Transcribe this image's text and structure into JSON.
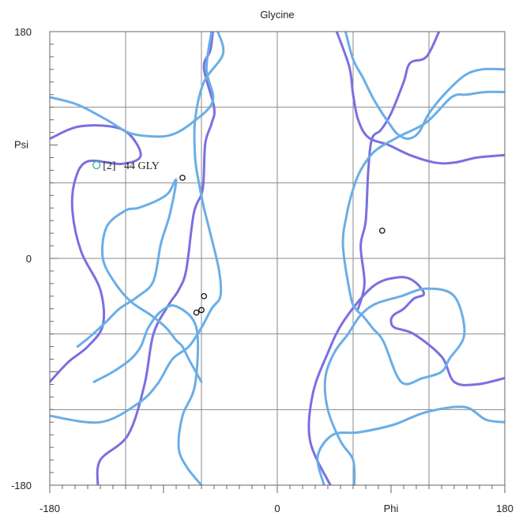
{
  "chart_data": {
    "type": "scatter",
    "title": "Glycine",
    "xlabel": "Phi",
    "ylabel": "Psi",
    "xlim": [
      -180,
      180
    ],
    "ylim": [
      -180,
      180
    ],
    "x_tick_labels": [
      "-180",
      "0",
      "180"
    ],
    "y_tick_labels": [
      "180",
      "0",
      "-180"
    ],
    "grid": true,
    "colors": {
      "allowed_contour": "#7b6fe0",
      "favored_contour": "#6aaee6",
      "outlier_marker": "#3fc49a",
      "point_marker": "#111111"
    },
    "points": [
      {
        "phi": -75,
        "psi": 64
      },
      {
        "phi": -58,
        "psi": -30
      },
      {
        "phi": -60,
        "psi": -41
      },
      {
        "phi": -64,
        "psi": -43
      },
      {
        "phi": 83,
        "psi": 22
      }
    ],
    "outliers": [
      {
        "phi": -143,
        "psi": 74,
        "label": "[2]   44 GLY"
      }
    ],
    "contours": [
      {
        "level": "allowed",
        "points": [
          [
            -142,
            -180
          ],
          [
            -140,
            -160
          ],
          [
            -118,
            -140
          ],
          [
            -105,
            -100
          ],
          [
            -98,
            -60
          ],
          [
            -86,
            -37
          ],
          [
            -78,
            -25
          ],
          [
            -72,
            -9
          ],
          [
            -66,
            36
          ],
          [
            -59,
            55
          ],
          [
            -57,
            91
          ],
          [
            -52,
            107
          ],
          [
            -50,
            120
          ],
          [
            -58,
            151
          ],
          [
            -53,
            165
          ],
          [
            -51,
            180
          ]
        ]
      },
      {
        "level": "allowed",
        "points": [
          [
            -180,
            -98
          ],
          [
            -165,
            -82
          ],
          [
            -150,
            -70
          ],
          [
            -138,
            -53
          ],
          [
            -140,
            -25
          ],
          [
            -155,
            5
          ],
          [
            -162,
            37
          ],
          [
            -160,
            62
          ],
          [
            -150,
            77
          ],
          [
            -123,
            75
          ],
          [
            -108,
            82
          ],
          [
            -122,
            102
          ],
          [
            -155,
            105
          ],
          [
            -180,
            95
          ]
        ]
      },
      {
        "level": "allowed",
        "points": [
          [
            42,
            -180
          ],
          [
            26,
            -145
          ],
          [
            28,
            -108
          ],
          [
            40,
            -75
          ],
          [
            53,
            -49
          ],
          [
            76,
            -22
          ],
          [
            96,
            -15
          ],
          [
            108,
            -18
          ],
          [
            116,
            -28
          ],
          [
            108,
            -32
          ],
          [
            100,
            -40
          ],
          [
            92,
            -45
          ],
          [
            90,
            -50
          ],
          [
            93,
            -55
          ],
          [
            108,
            -60
          ],
          [
            130,
            -78
          ],
          [
            140,
            -98
          ],
          [
            158,
            -100
          ],
          [
            180,
            -95
          ]
        ]
      },
      {
        "level": "allowed",
        "points": [
          [
            47,
            180
          ],
          [
            57,
            152
          ],
          [
            60,
            130
          ],
          [
            64,
            110
          ],
          [
            72,
            96
          ],
          [
            88,
            90
          ],
          [
            105,
            82
          ],
          [
            125,
            76
          ],
          [
            140,
            76
          ],
          [
            158,
            80
          ],
          [
            180,
            82
          ]
        ]
      },
      {
        "level": "allowed",
        "points": [
          [
            128,
            180
          ],
          [
            118,
            160
          ],
          [
            105,
            155
          ],
          [
            100,
            140
          ],
          [
            90,
            115
          ],
          [
            82,
            102
          ],
          [
            75,
            95
          ],
          [
            72,
            70
          ],
          [
            70,
            30
          ],
          [
            66,
            10
          ],
          [
            69,
            -20
          ],
          [
            64,
            -40
          ]
        ]
      },
      {
        "level": "favored",
        "points": [
          [
            -180,
            -125
          ],
          [
            -140,
            -130
          ],
          [
            -110,
            -115
          ],
          [
            -95,
            -100
          ],
          [
            -83,
            -80
          ],
          [
            -70,
            -70
          ],
          [
            -60,
            -55
          ],
          [
            -52,
            -40
          ],
          [
            -45,
            -30
          ],
          [
            -46,
            -10
          ],
          [
            -53,
            20
          ],
          [
            -58,
            40
          ],
          [
            -62,
            60
          ],
          [
            -65,
            80
          ],
          [
            -65,
            110
          ],
          [
            -58,
            140
          ],
          [
            -43,
            162
          ],
          [
            -47,
            180
          ]
        ]
      },
      {
        "level": "favored",
        "points": [
          [
            -180,
            128
          ],
          [
            -158,
            122
          ],
          [
            -135,
            110
          ],
          [
            -118,
            100
          ],
          [
            -102,
            97
          ],
          [
            -84,
            98
          ],
          [
            -67,
            108
          ],
          [
            -51,
            125
          ],
          [
            -56,
            150
          ],
          [
            -52,
            180
          ]
        ]
      },
      {
        "level": "favored",
        "points": [
          [
            -158,
            -70
          ],
          [
            -148,
            -62
          ],
          [
            -135,
            -50
          ],
          [
            -125,
            -40
          ],
          [
            -110,
            -30
          ],
          [
            -98,
            -18
          ],
          [
            -92,
            12
          ],
          [
            -85,
            35
          ],
          [
            -80,
            62
          ],
          [
            -86,
            52
          ],
          [
            -95,
            46
          ],
          [
            -110,
            40
          ],
          [
            -120,
            38
          ],
          [
            -135,
            25
          ],
          [
            -138,
            0
          ],
          [
            -128,
            -20
          ],
          [
            -115,
            -35
          ],
          [
            -100,
            -45
          ],
          [
            -88,
            -55
          ],
          [
            -80,
            -65
          ],
          [
            -75,
            -70
          ],
          [
            -70,
            -80
          ],
          [
            -60,
            -98
          ]
        ]
      },
      {
        "level": "favored",
        "points": [
          [
            -145,
            -98
          ],
          [
            -130,
            -90
          ],
          [
            -116,
            -80
          ],
          [
            -108,
            -70
          ],
          [
            -102,
            -55
          ],
          [
            -92,
            -42
          ],
          [
            -80,
            -38
          ],
          [
            -64,
            -55
          ],
          [
            -65,
            -100
          ],
          [
            -75,
            -125
          ],
          [
            -78,
            -150
          ],
          [
            -72,
            -165
          ],
          [
            -60,
            -180
          ]
        ]
      },
      {
        "level": "favored",
        "points": [
          [
            37,
            -180
          ],
          [
            32,
            -157
          ],
          [
            44,
            -140
          ],
          [
            65,
            -138
          ],
          [
            92,
            -132
          ],
          [
            118,
            -122
          ],
          [
            148,
            -118
          ],
          [
            165,
            -128
          ],
          [
            180,
            -130
          ]
        ]
      },
      {
        "level": "favored",
        "points": [
          [
            61,
            -180
          ],
          [
            60,
            -160
          ],
          [
            50,
            -145
          ],
          [
            40,
            -120
          ],
          [
            38,
            -95
          ],
          [
            45,
            -75
          ],
          [
            56,
            -60
          ],
          [
            66,
            -45
          ],
          [
            78,
            -36
          ],
          [
            98,
            -30
          ],
          [
            118,
            -24
          ],
          [
            140,
            -30
          ],
          [
            148,
            -60
          ],
          [
            136,
            -80
          ],
          [
            130,
            -90
          ],
          [
            115,
            -95
          ],
          [
            98,
            -98
          ],
          [
            84,
            -66
          ],
          [
            76,
            -56
          ],
          [
            68,
            -46
          ],
          [
            62,
            -40
          ],
          [
            58,
            -30
          ],
          [
            52,
            10
          ],
          [
            55,
            35
          ],
          [
            60,
            55
          ],
          [
            66,
            70
          ],
          [
            77,
            85
          ],
          [
            95,
            96
          ],
          [
            118,
            108
          ],
          [
            138,
            128
          ],
          [
            150,
            130
          ],
          [
            165,
            132
          ],
          [
            180,
            132
          ]
        ]
      },
      {
        "level": "favored",
        "points": [
          [
            54,
            180
          ],
          [
            60,
            158
          ],
          [
            68,
            143
          ],
          [
            77,
            125
          ],
          [
            90,
            105
          ],
          [
            96,
            98
          ],
          [
            104,
            95
          ],
          [
            112,
            100
          ],
          [
            120,
            115
          ],
          [
            132,
            130
          ],
          [
            148,
            145
          ],
          [
            162,
            150
          ],
          [
            180,
            150
          ]
        ]
      }
    ]
  }
}
